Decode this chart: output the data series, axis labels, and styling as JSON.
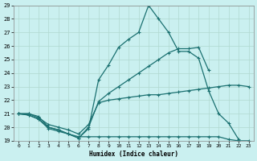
{
  "xlabel": "Humidex (Indice chaleur)",
  "xlim": [
    -0.5,
    23.5
  ],
  "ylim": [
    19,
    29
  ],
  "yticks": [
    19,
    20,
    21,
    22,
    23,
    24,
    25,
    26,
    27,
    28,
    29
  ],
  "xticks": [
    0,
    1,
    2,
    3,
    4,
    5,
    6,
    7,
    8,
    9,
    10,
    11,
    12,
    13,
    14,
    15,
    16,
    17,
    18,
    19,
    20,
    21,
    22,
    23
  ],
  "bg_color": "#caf0f0",
  "plot_bg": "#caf0f0",
  "line_color": "#1a7070",
  "grid_color": "#b0d8d0",
  "lines": [
    {
      "x": [
        0,
        1,
        2,
        3,
        4,
        5,
        6,
        7,
        8,
        9,
        10,
        11,
        12,
        13,
        14,
        15,
        16,
        17,
        18,
        19,
        20,
        21,
        22
      ],
      "y": [
        21,
        21,
        20.8,
        20,
        19.8,
        19.5,
        19.2,
        19.9,
        23.5,
        24.6,
        25.9,
        26.5,
        27.0,
        29.0,
        28.0,
        27.0,
        25.6,
        25.6,
        25.1,
        22.7,
        21.0,
        20.3,
        19.1
      ]
    },
    {
      "x": [
        0,
        1,
        2,
        3,
        4,
        5,
        6,
        7,
        8,
        9,
        10,
        11,
        12,
        13,
        14,
        15,
        16,
        17,
        18,
        19
      ],
      "y": [
        21,
        20.9,
        20.6,
        20,
        19.8,
        19.5,
        19.2,
        20.0,
        21.9,
        22.5,
        23.0,
        23.5,
        24.0,
        24.5,
        25.0,
        25.5,
        25.8,
        25.8,
        25.9,
        24.2
      ]
    },
    {
      "x": [
        0,
        1,
        2,
        3,
        4,
        5,
        6,
        7,
        8,
        9,
        10,
        11,
        12,
        13,
        14,
        15,
        16,
        17,
        18,
        19,
        20,
        21,
        22,
        23
      ],
      "y": [
        21,
        21,
        20.7,
        20.2,
        20.0,
        19.8,
        19.5,
        20.2,
        21.8,
        22.0,
        22.1,
        22.2,
        22.3,
        22.4,
        22.4,
        22.5,
        22.6,
        22.7,
        22.8,
        22.9,
        23.0,
        23.1,
        23.1,
        23.0
      ]
    },
    {
      "x": [
        0,
        1,
        2,
        3,
        4,
        5,
        6,
        7,
        8,
        9,
        10,
        11,
        12,
        13,
        14,
        15,
        16,
        17,
        18,
        19,
        20,
        21,
        22,
        23
      ],
      "y": [
        21,
        20.9,
        20.6,
        19.9,
        19.7,
        19.5,
        19.3,
        19.3,
        19.3,
        19.3,
        19.3,
        19.3,
        19.3,
        19.3,
        19.3,
        19.3,
        19.3,
        19.3,
        19.3,
        19.3,
        19.3,
        19.1,
        19.0,
        19.0
      ]
    }
  ]
}
